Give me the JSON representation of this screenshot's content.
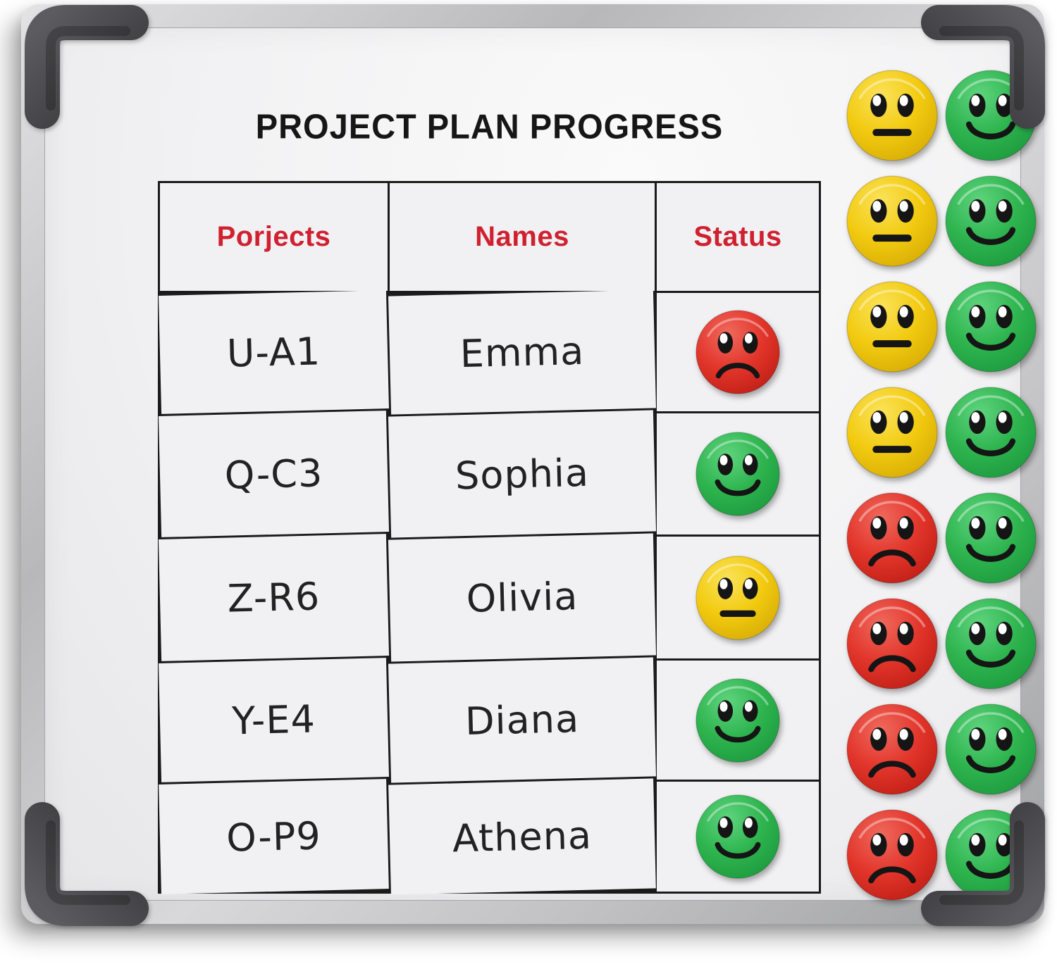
{
  "title": "PROJECT PLAN PROGRESS",
  "table": {
    "headers": [
      "Porjects",
      "Names",
      "Status"
    ],
    "rows": [
      {
        "project": "U-A1",
        "name": "Emma",
        "status": "sad-red"
      },
      {
        "project": "Q-C3",
        "name": "Sophia",
        "status": "happy-green"
      },
      {
        "project": "Z-R6",
        "name": "Olivia",
        "status": "neutral-yellow"
      },
      {
        "project": "Y-E4",
        "name": "Diana",
        "status": "happy-green"
      },
      {
        "project": "O-P9",
        "name": "Athena",
        "status": "happy-green"
      }
    ]
  },
  "magnet_tray": {
    "items": [
      "neutral-yellow",
      "happy-green",
      "neutral-yellow",
      "happy-green",
      "neutral-yellow",
      "happy-green",
      "neutral-yellow",
      "happy-green",
      "sad-red",
      "happy-green",
      "sad-red",
      "happy-green",
      "sad-red",
      "happy-green",
      "sad-red",
      "happy-green"
    ]
  },
  "colors": {
    "yellow": {
      "base": "#f2ca10",
      "light": "#fbe35a",
      "dark": "#d9ae06"
    },
    "green": {
      "base": "#2eb44f",
      "light": "#5fd47e",
      "dark": "#1e9c3f"
    },
    "red": {
      "base": "#e2352b",
      "light": "#f0695d",
      "dark": "#c22017"
    },
    "header_text": "#cf2130",
    "title_text": "#161616",
    "grid_line": "#1b1b1b"
  }
}
